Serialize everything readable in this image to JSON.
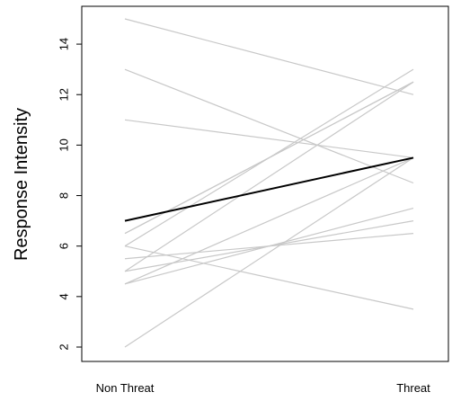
{
  "chart_data": {
    "type": "line",
    "title": "",
    "xlabel": "",
    "ylabel": "Response Intensity",
    "categories": [
      "Non Threat",
      "Threat"
    ],
    "ylim": [
      1.5,
      15.5
    ],
    "yticks": [
      2,
      4,
      6,
      8,
      10,
      12,
      14
    ],
    "grid": false,
    "legend": "none",
    "individual_color": "#c8c8c8",
    "mean_color": "#000000",
    "series": [
      {
        "values": [
          15,
          12
        ]
      },
      {
        "values": [
          13,
          8.5
        ]
      },
      {
        "values": [
          11,
          9.5
        ]
      },
      {
        "values": [
          6.5,
          12.5
        ]
      },
      {
        "values": [
          6.5,
          12.5
        ]
      },
      {
        "values": [
          6,
          13
        ]
      },
      {
        "values": [
          6,
          3.5
        ]
      },
      {
        "values": [
          5.5,
          6.5
        ]
      },
      {
        "values": [
          5,
          12.5
        ]
      },
      {
        "values": [
          5,
          7
        ]
      },
      {
        "values": [
          4.5,
          9.5
        ]
      },
      {
        "values": [
          4.5,
          7.5
        ]
      },
      {
        "values": [
          2,
          9.5
        ]
      }
    ],
    "mean": {
      "values": [
        7,
        9.5
      ]
    }
  }
}
